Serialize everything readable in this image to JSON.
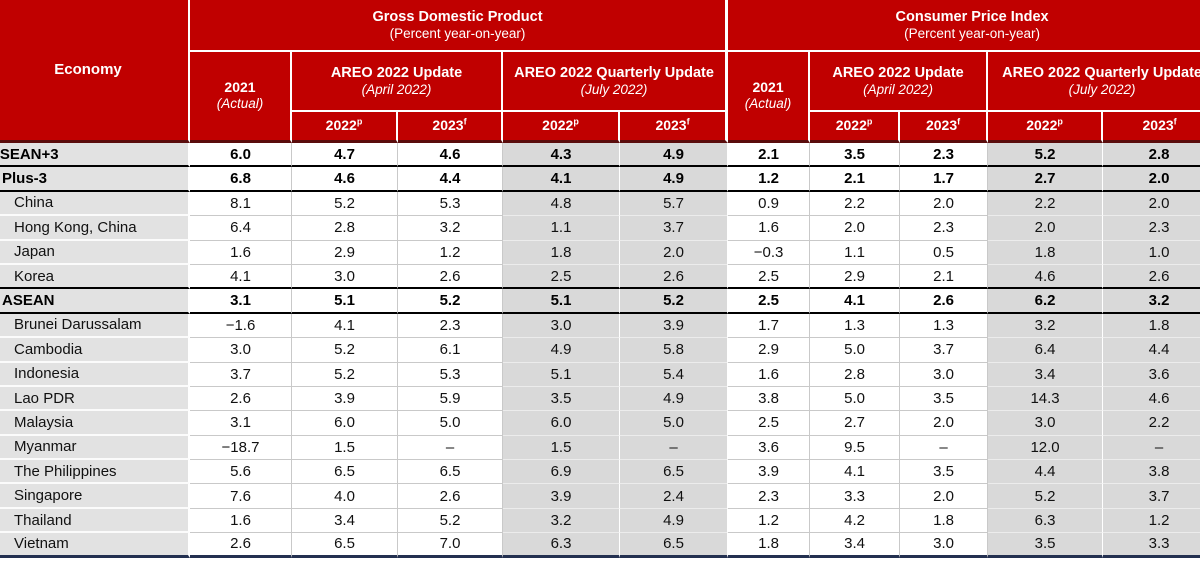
{
  "header": {
    "economy_label": "Economy",
    "gdp": {
      "title": "Gross Domestic Product",
      "subtitle": "(Percent year-on-year)"
    },
    "cpi": {
      "title": "Consumer Price Index",
      "subtitle": "(Percent year-on-year)"
    },
    "actual_col": {
      "year": "2021",
      "note": "(Actual)"
    },
    "update_col": {
      "title": "AREO 2022 Update",
      "subtitle": "(April 2022)"
    },
    "quarterly_col": {
      "title": "AREO 2022 Quarterly Update",
      "subtitle": "(July 2022)"
    },
    "year_cols": [
      {
        "label": "2022",
        "sup": "p"
      },
      {
        "label": "2023",
        "sup": "f"
      }
    ]
  },
  "colors": {
    "header_red": "#c00000",
    "header_divider": "#5a0c0c",
    "economy_gray": "#e2e2e2",
    "shade_gray": "#d9d9d9",
    "bottom_border": "#233050"
  },
  "rows": [
    {
      "economy": "ASEAN+3",
      "level": "aggregate",
      "clip_left": true,
      "section_end": true,
      "gdp": [
        "6.0",
        "4.7",
        "4.6",
        "4.3",
        "4.9"
      ],
      "cpi": [
        "2.1",
        "3.5",
        "2.3",
        "5.2",
        "2.8"
      ]
    },
    {
      "economy": "Plus-3",
      "level": "aggregate",
      "clip_left": false,
      "section_end": true,
      "gdp": [
        "6.8",
        "4.6",
        "4.4",
        "4.1",
        "4.9"
      ],
      "cpi": [
        "1.2",
        "2.1",
        "1.7",
        "2.7",
        "2.0"
      ]
    },
    {
      "economy": "China",
      "level": "country",
      "clip_left": false,
      "section_end": false,
      "gdp": [
        "8.1",
        "5.2",
        "5.3",
        "4.8",
        "5.7"
      ],
      "cpi": [
        "0.9",
        "2.2",
        "2.0",
        "2.2",
        "2.0"
      ]
    },
    {
      "economy": "Hong Kong, China",
      "level": "country",
      "clip_left": false,
      "section_end": false,
      "gdp": [
        "6.4",
        "2.8",
        "3.2",
        "1.1",
        "3.7"
      ],
      "cpi": [
        "1.6",
        "2.0",
        "2.3",
        "2.0",
        "2.3"
      ]
    },
    {
      "economy": "Japan",
      "level": "country",
      "clip_left": false,
      "section_end": false,
      "gdp": [
        "1.6",
        "2.9",
        "1.2",
        "1.8",
        "2.0"
      ],
      "cpi": [
        "−0.3",
        "1.1",
        "0.5",
        "1.8",
        "1.0"
      ]
    },
    {
      "economy": "Korea",
      "level": "country",
      "clip_left": false,
      "section_end": true,
      "gdp": [
        "4.1",
        "3.0",
        "2.6",
        "2.5",
        "2.6"
      ],
      "cpi": [
        "2.5",
        "2.9",
        "2.1",
        "4.6",
        "2.6"
      ]
    },
    {
      "economy": "ASEAN",
      "level": "aggregate",
      "clip_left": false,
      "section_end": true,
      "gdp": [
        "3.1",
        "5.1",
        "5.2",
        "5.1",
        "5.2"
      ],
      "cpi": [
        "2.5",
        "4.1",
        "2.6",
        "6.2",
        "3.2"
      ]
    },
    {
      "economy": "Brunei Darussalam",
      "level": "country",
      "clip_left": false,
      "section_end": false,
      "gdp": [
        "−1.6",
        "4.1",
        "2.3",
        "3.0",
        "3.9"
      ],
      "cpi": [
        "1.7",
        "1.3",
        "1.3",
        "3.2",
        "1.8"
      ]
    },
    {
      "economy": "Cambodia",
      "level": "country",
      "clip_left": false,
      "section_end": false,
      "gdp": [
        "3.0",
        "5.2",
        "6.1",
        "4.9",
        "5.8"
      ],
      "cpi": [
        "2.9",
        "5.0",
        "3.7",
        "6.4",
        "4.4"
      ]
    },
    {
      "economy": "Indonesia",
      "level": "country",
      "clip_left": false,
      "section_end": false,
      "gdp": [
        "3.7",
        "5.2",
        "5.3",
        "5.1",
        "5.4"
      ],
      "cpi": [
        "1.6",
        "2.8",
        "3.0",
        "3.4",
        "3.6"
      ]
    },
    {
      "economy": "Lao PDR",
      "level": "country",
      "clip_left": false,
      "section_end": false,
      "gdp": [
        "2.6",
        "3.9",
        "5.9",
        "3.5",
        "4.9"
      ],
      "cpi": [
        "3.8",
        "5.0",
        "3.5",
        "14.3",
        "4.6"
      ]
    },
    {
      "economy": "Malaysia",
      "level": "country",
      "clip_left": false,
      "section_end": false,
      "gdp": [
        "3.1",
        "6.0",
        "5.0",
        "6.0",
        "5.0"
      ],
      "cpi": [
        "2.5",
        "2.7",
        "2.0",
        "3.0",
        "2.2"
      ]
    },
    {
      "economy": "Myanmar",
      "level": "country",
      "clip_left": false,
      "section_end": false,
      "gdp": [
        "−18.7",
        "1.5",
        "–",
        "1.5",
        "–"
      ],
      "cpi": [
        "3.6",
        "9.5",
        "–",
        "12.0",
        "–"
      ]
    },
    {
      "economy": "The Philippines",
      "level": "country",
      "clip_left": false,
      "section_end": false,
      "gdp": [
        "5.6",
        "6.5",
        "6.5",
        "6.9",
        "6.5"
      ],
      "cpi": [
        "3.9",
        "4.1",
        "3.5",
        "4.4",
        "3.8"
      ]
    },
    {
      "economy": "Singapore",
      "level": "country",
      "clip_left": false,
      "section_end": false,
      "gdp": [
        "7.6",
        "4.0",
        "2.6",
        "3.9",
        "2.4"
      ],
      "cpi": [
        "2.3",
        "3.3",
        "2.0",
        "5.2",
        "3.7"
      ]
    },
    {
      "economy": "Thailand",
      "level": "country",
      "clip_left": false,
      "section_end": false,
      "gdp": [
        "1.6",
        "3.4",
        "5.2",
        "3.2",
        "4.9"
      ],
      "cpi": [
        "1.2",
        "4.2",
        "1.8",
        "6.3",
        "1.2"
      ]
    },
    {
      "economy": "Vietnam",
      "level": "country",
      "clip_left": false,
      "section_end": false,
      "gdp": [
        "2.6",
        "6.5",
        "7.0",
        "6.3",
        "6.5"
      ],
      "cpi": [
        "1.8",
        "3.4",
        "3.0",
        "3.5",
        "3.3"
      ]
    }
  ]
}
